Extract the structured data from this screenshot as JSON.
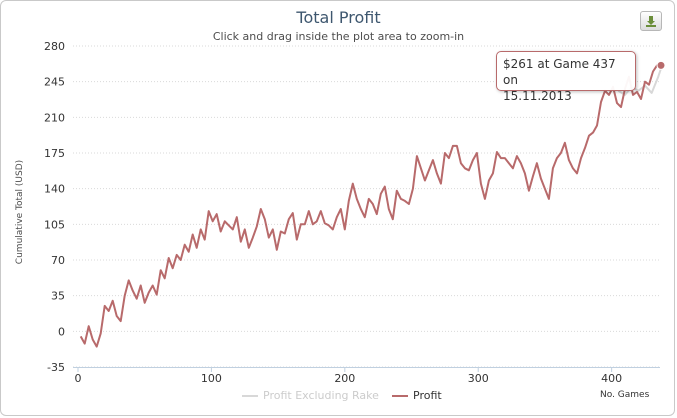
{
  "chart_data": {
    "type": "line",
    "title": "Total Profit",
    "subtitle": "Click and drag inside the plot area to zoom-in",
    "ylabel": "Cumulative Total (USD)",
    "xlabel": "No. Games",
    "ylim": [
      -35,
      280
    ],
    "xlim": [
      0,
      440
    ],
    "yticks": [
      -35,
      0,
      35,
      70,
      105,
      140,
      175,
      210,
      245,
      280
    ],
    "xticks": [
      0,
      100,
      200,
      300,
      400
    ],
    "series": [
      {
        "name": "Profit Excluding Rake",
        "color": "#d8d8d8",
        "x": [
          405,
          410,
          415,
          420,
          425,
          430,
          435,
          437
        ],
        "y": [
          236,
          232,
          240,
          236,
          241,
          234,
          250,
          258
        ]
      },
      {
        "name": "Profit",
        "color": "#b86a6b",
        "x": [
          2,
          5,
          8,
          11,
          14,
          17,
          20,
          23,
          26,
          29,
          32,
          35,
          38,
          41,
          44,
          47,
          50,
          53,
          56,
          59,
          62,
          65,
          68,
          71,
          74,
          77,
          80,
          83,
          86,
          89,
          92,
          95,
          98,
          101,
          104,
          107,
          110,
          113,
          116,
          119,
          122,
          125,
          128,
          131,
          134,
          137,
          140,
          143,
          146,
          149,
          152,
          155,
          158,
          161,
          164,
          167,
          170,
          173,
          176,
          179,
          182,
          185,
          188,
          191,
          194,
          197,
          200,
          203,
          206,
          209,
          212,
          215,
          218,
          221,
          224,
          227,
          230,
          233,
          236,
          239,
          242,
          245,
          248,
          251,
          254,
          257,
          260,
          263,
          266,
          269,
          272,
          275,
          278,
          281,
          284,
          287,
          290,
          293,
          296,
          299,
          302,
          305,
          308,
          311,
          314,
          317,
          320,
          323,
          326,
          329,
          332,
          335,
          338,
          341,
          344,
          347,
          350,
          353,
          356,
          359,
          362,
          365,
          368,
          371,
          374,
          377,
          380,
          383,
          386,
          389,
          392,
          395,
          398,
          401,
          404,
          407,
          410,
          413,
          416,
          419,
          422,
          425,
          428,
          431,
          434,
          437
        ],
        "y": [
          -5,
          -12,
          5,
          -8,
          -15,
          -2,
          25,
          20,
          30,
          15,
          10,
          35,
          50,
          40,
          32,
          45,
          28,
          38,
          45,
          36,
          60,
          52,
          72,
          62,
          75,
          70,
          85,
          78,
          95,
          82,
          100,
          90,
          118,
          108,
          115,
          98,
          108,
          104,
          100,
          112,
          88,
          100,
          82,
          92,
          103,
          120,
          110,
          92,
          100,
          80,
          98,
          96,
          110,
          116,
          90,
          105,
          105,
          118,
          105,
          108,
          118,
          106,
          104,
          100,
          112,
          120,
          100,
          128,
          145,
          130,
          120,
          112,
          130,
          125,
          115,
          135,
          142,
          120,
          110,
          138,
          130,
          128,
          125,
          140,
          172,
          160,
          148,
          158,
          168,
          155,
          145,
          175,
          170,
          182,
          182,
          165,
          160,
          158,
          168,
          175,
          145,
          130,
          148,
          155,
          176,
          170,
          170,
          165,
          160,
          172,
          165,
          155,
          138,
          152,
          165,
          150,
          140,
          130,
          160,
          170,
          175,
          185,
          168,
          160,
          155,
          170,
          180,
          192,
          195,
          202,
          225,
          236,
          232,
          240,
          224,
          220,
          238,
          250,
          232,
          235,
          228,
          245,
          242,
          255,
          261,
          261
        ]
      }
    ],
    "highlight": {
      "x": 437,
      "y": 261
    },
    "tooltip": {
      "line1": "$261 at Game 437 on",
      "line2": "15.11.2013"
    },
    "legend": [
      "Profit Excluding Rake",
      "Profit"
    ]
  },
  "icons": {
    "export": "download-icon"
  }
}
